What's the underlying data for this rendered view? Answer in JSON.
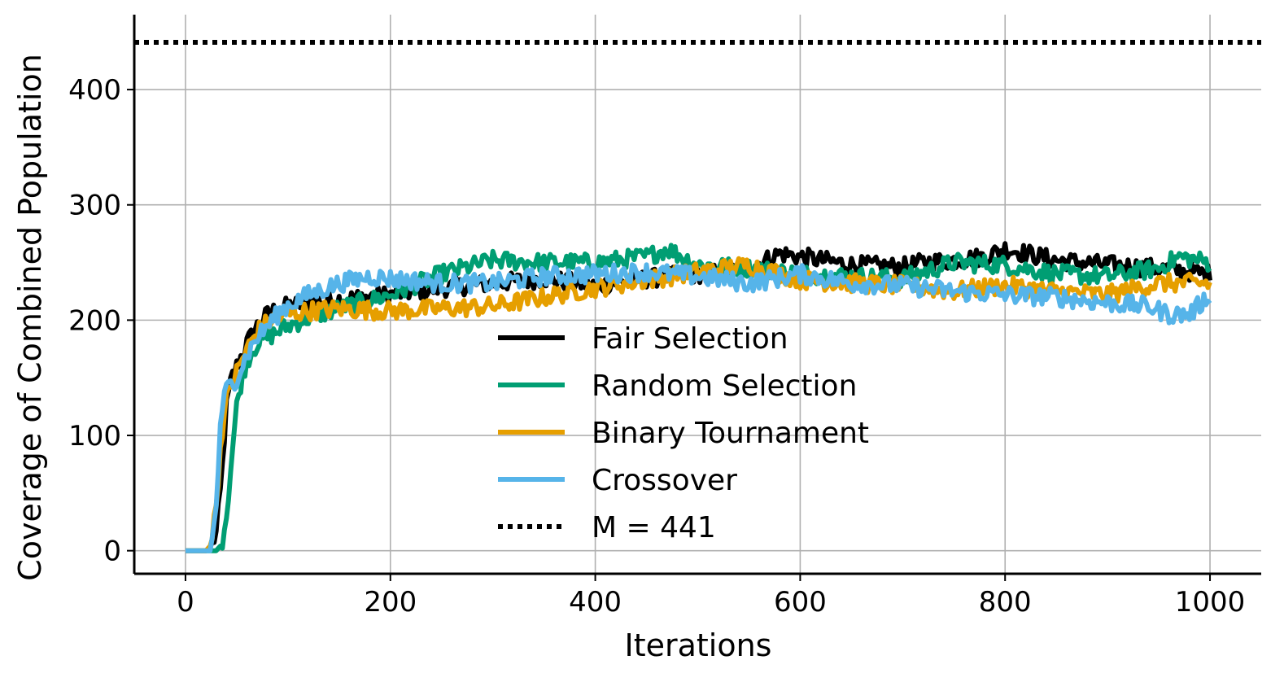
{
  "chart_data": {
    "type": "line",
    "xlabel": "Iterations",
    "ylabel": "Coverage of Combined Population",
    "xlim": [
      -50,
      1050
    ],
    "ylim": [
      -20,
      465
    ],
    "xticks": [
      0,
      200,
      400,
      600,
      800,
      1000
    ],
    "yticks": [
      0,
      100,
      200,
      300,
      400
    ],
    "grid": true,
    "legend_position": "center",
    "reference_line": {
      "label": "M = 441",
      "y": 441,
      "style": "dotted",
      "color": "#000000"
    },
    "series": [
      {
        "name": "Fair Selection",
        "color": "#000000",
        "x": [
          0,
          20,
          25,
          30,
          35,
          40,
          45,
          50,
          60,
          70,
          80,
          90,
          100,
          120,
          150,
          200,
          250,
          300,
          350,
          400,
          450,
          500,
          550,
          580,
          600,
          650,
          700,
          720,
          750,
          780,
          800,
          820,
          850,
          900,
          950,
          1000
        ],
        "y": [
          0,
          0,
          3,
          15,
          60,
          125,
          150,
          160,
          180,
          195,
          205,
          210,
          212,
          215,
          218,
          222,
          228,
          232,
          236,
          230,
          236,
          240,
          245,
          258,
          255,
          248,
          246,
          250,
          252,
          255,
          262,
          258,
          252,
          248,
          245,
          240
        ]
      },
      {
        "name": "Random Selection",
        "color": "#009E73",
        "x": [
          0,
          30,
          35,
          40,
          45,
          50,
          55,
          60,
          70,
          80,
          90,
          100,
          120,
          150,
          200,
          250,
          300,
          350,
          400,
          450,
          470,
          500,
          550,
          600,
          650,
          700,
          750,
          800,
          850,
          900,
          950,
          970,
          1000
        ],
        "y": [
          0,
          0,
          5,
          30,
          80,
          125,
          150,
          165,
          180,
          185,
          190,
          195,
          202,
          210,
          222,
          240,
          252,
          250,
          250,
          255,
          262,
          248,
          245,
          240,
          238,
          236,
          250,
          248,
          240,
          238,
          245,
          255,
          250
        ]
      },
      {
        "name": "Binary Tournament",
        "color": "#E69F00",
        "x": [
          0,
          20,
          25,
          30,
          35,
          40,
          45,
          50,
          60,
          70,
          80,
          90,
          100,
          120,
          150,
          200,
          250,
          300,
          350,
          400,
          450,
          500,
          550,
          600,
          650,
          700,
          750,
          800,
          850,
          900,
          950,
          1000
        ],
        "y": [
          0,
          0,
          5,
          40,
          100,
          130,
          145,
          155,
          175,
          190,
          198,
          202,
          205,
          208,
          210,
          208,
          210,
          212,
          220,
          228,
          235,
          242,
          248,
          235,
          232,
          230,
          225,
          230,
          225,
          222,
          232,
          232
        ]
      },
      {
        "name": "Crossover",
        "color": "#56B4E9",
        "x": [
          0,
          25,
          30,
          35,
          40,
          50,
          60,
          70,
          80,
          90,
          100,
          120,
          150,
          180,
          200,
          250,
          300,
          350,
          400,
          450,
          500,
          550,
          600,
          650,
          700,
          750,
          800,
          850,
          900,
          940,
          960,
          980,
          1000
        ],
        "y": [
          0,
          0,
          40,
          120,
          140,
          150,
          170,
          185,
          195,
          205,
          213,
          222,
          232,
          238,
          236,
          232,
          232,
          238,
          240,
          242,
          238,
          232,
          240,
          232,
          230,
          225,
          222,
          220,
          215,
          212,
          205,
          205,
          222
        ]
      }
    ]
  }
}
